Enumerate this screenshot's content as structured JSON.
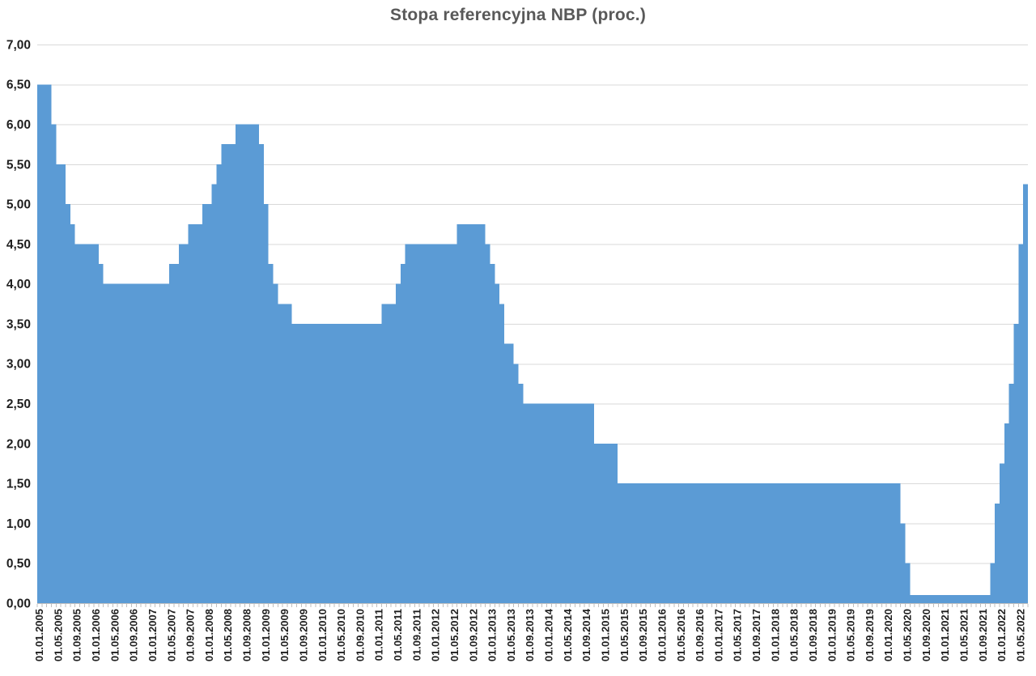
{
  "chart_data": {
    "type": "area",
    "title": "Stopa referencyjna NBP (proc.)",
    "series_name": "Stopa referencyjna NBP",
    "unit": "proc.",
    "x_start": "01.01.2005",
    "x_end": "01.06.2022",
    "x_frequency": "monthly",
    "step_mode": "step-after",
    "ylim": [
      0,
      7
    ],
    "y_step": 0.5,
    "grid": "horizontal",
    "legend": "none",
    "values": [
      6.5,
      6.5,
      6.5,
      6.0,
      5.5,
      5.5,
      5.0,
      4.75,
      4.5,
      4.5,
      4.5,
      4.5,
      4.5,
      4.25,
      4.0,
      4.0,
      4.0,
      4.0,
      4.0,
      4.0,
      4.0,
      4.0,
      4.0,
      4.0,
      4.0,
      4.0,
      4.0,
      4.0,
      4.25,
      4.25,
      4.5,
      4.5,
      4.75,
      4.75,
      4.75,
      5.0,
      5.0,
      5.25,
      5.5,
      5.75,
      5.75,
      5.75,
      6.0,
      6.0,
      6.0,
      6.0,
      6.0,
      5.75,
      5.0,
      4.25,
      4.0,
      3.75,
      3.75,
      3.75,
      3.5,
      3.5,
      3.5,
      3.5,
      3.5,
      3.5,
      3.5,
      3.5,
      3.5,
      3.5,
      3.5,
      3.5,
      3.5,
      3.5,
      3.5,
      3.5,
      3.5,
      3.5,
      3.5,
      3.75,
      3.75,
      3.75,
      4.0,
      4.25,
      4.5,
      4.5,
      4.5,
      4.5,
      4.5,
      4.5,
      4.5,
      4.5,
      4.5,
      4.5,
      4.5,
      4.75,
      4.75,
      4.75,
      4.75,
      4.75,
      4.75,
      4.5,
      4.25,
      4.0,
      3.75,
      3.25,
      3.25,
      3.0,
      2.75,
      2.5,
      2.5,
      2.5,
      2.5,
      2.5,
      2.5,
      2.5,
      2.5,
      2.5,
      2.5,
      2.5,
      2.5,
      2.5,
      2.5,
      2.5,
      2.0,
      2.0,
      2.0,
      2.0,
      2.0,
      1.5,
      1.5,
      1.5,
      1.5,
      1.5,
      1.5,
      1.5,
      1.5,
      1.5,
      1.5,
      1.5,
      1.5,
      1.5,
      1.5,
      1.5,
      1.5,
      1.5,
      1.5,
      1.5,
      1.5,
      1.5,
      1.5,
      1.5,
      1.5,
      1.5,
      1.5,
      1.5,
      1.5,
      1.5,
      1.5,
      1.5,
      1.5,
      1.5,
      1.5,
      1.5,
      1.5,
      1.5,
      1.5,
      1.5,
      1.5,
      1.5,
      1.5,
      1.5,
      1.5,
      1.5,
      1.5,
      1.5,
      1.5,
      1.5,
      1.5,
      1.5,
      1.5,
      1.5,
      1.5,
      1.5,
      1.5,
      1.5,
      1.5,
      1.5,
      1.5,
      1.0,
      0.5,
      0.1,
      0.1,
      0.1,
      0.1,
      0.1,
      0.1,
      0.1,
      0.1,
      0.1,
      0.1,
      0.1,
      0.1,
      0.1,
      0.1,
      0.1,
      0.1,
      0.1,
      0.5,
      1.25,
      1.75,
      2.25,
      2.75,
      3.5,
      4.5,
      5.25
    ],
    "x_tick_labels": [
      "01.01.2005",
      "01.05.2005",
      "01.09.2005",
      "01.01.2006",
      "01.05.2006",
      "01.09.2006",
      "01.01.2007",
      "01.05.2007",
      "01.09.2007",
      "01.01.2008",
      "01.05.2008",
      "01.09.2008",
      "01.01.2009",
      "01.05.2009",
      "01.09.2009",
      "01.01.2010",
      "01.05.2010",
      "01.09.2010",
      "01.01.2011",
      "01.05.2011",
      "01.09.2011",
      "01.01.2012",
      "01.05.2012",
      "01.09.2012",
      "01.01.2013",
      "01.05.2013",
      "01.09.2013",
      "01.01.2014",
      "01.05.2014",
      "01.09.2014",
      "01.01.2015",
      "01.05.2015",
      "01.09.2015",
      "01.01.2016",
      "01.05.2016",
      "01.09.2016",
      "01.01.2017",
      "01.05.2017",
      "01.09.2017",
      "01.01.2018",
      "01.05.2018",
      "01.09.2018",
      "01.01.2019",
      "01.05.2019",
      "01.09.2019",
      "01.01.2020",
      "01.05.2020",
      "01.09.2020",
      "01.01.2021",
      "01.05.2021",
      "01.09.2021",
      "01.01.2022",
      "01.05.2022"
    ],
    "x_label_every_n_months": 4,
    "y_tick_labels": [
      "7,00",
      "6,50",
      "6,00",
      "5,50",
      "5,00",
      "4,50",
      "4,00",
      "3,50",
      "3,00",
      "2,50",
      "2,00",
      "1,50",
      "1,00",
      "0,50",
      "0,00"
    ],
    "colors": {
      "area": "#5B9BD5",
      "gridline": "#D9D9D9",
      "axis_line": "#BFBFBF",
      "tick": "#BFBFBF",
      "title": "#595959",
      "axis_label": "#1F1F1F",
      "background": "#FFFFFF"
    }
  }
}
